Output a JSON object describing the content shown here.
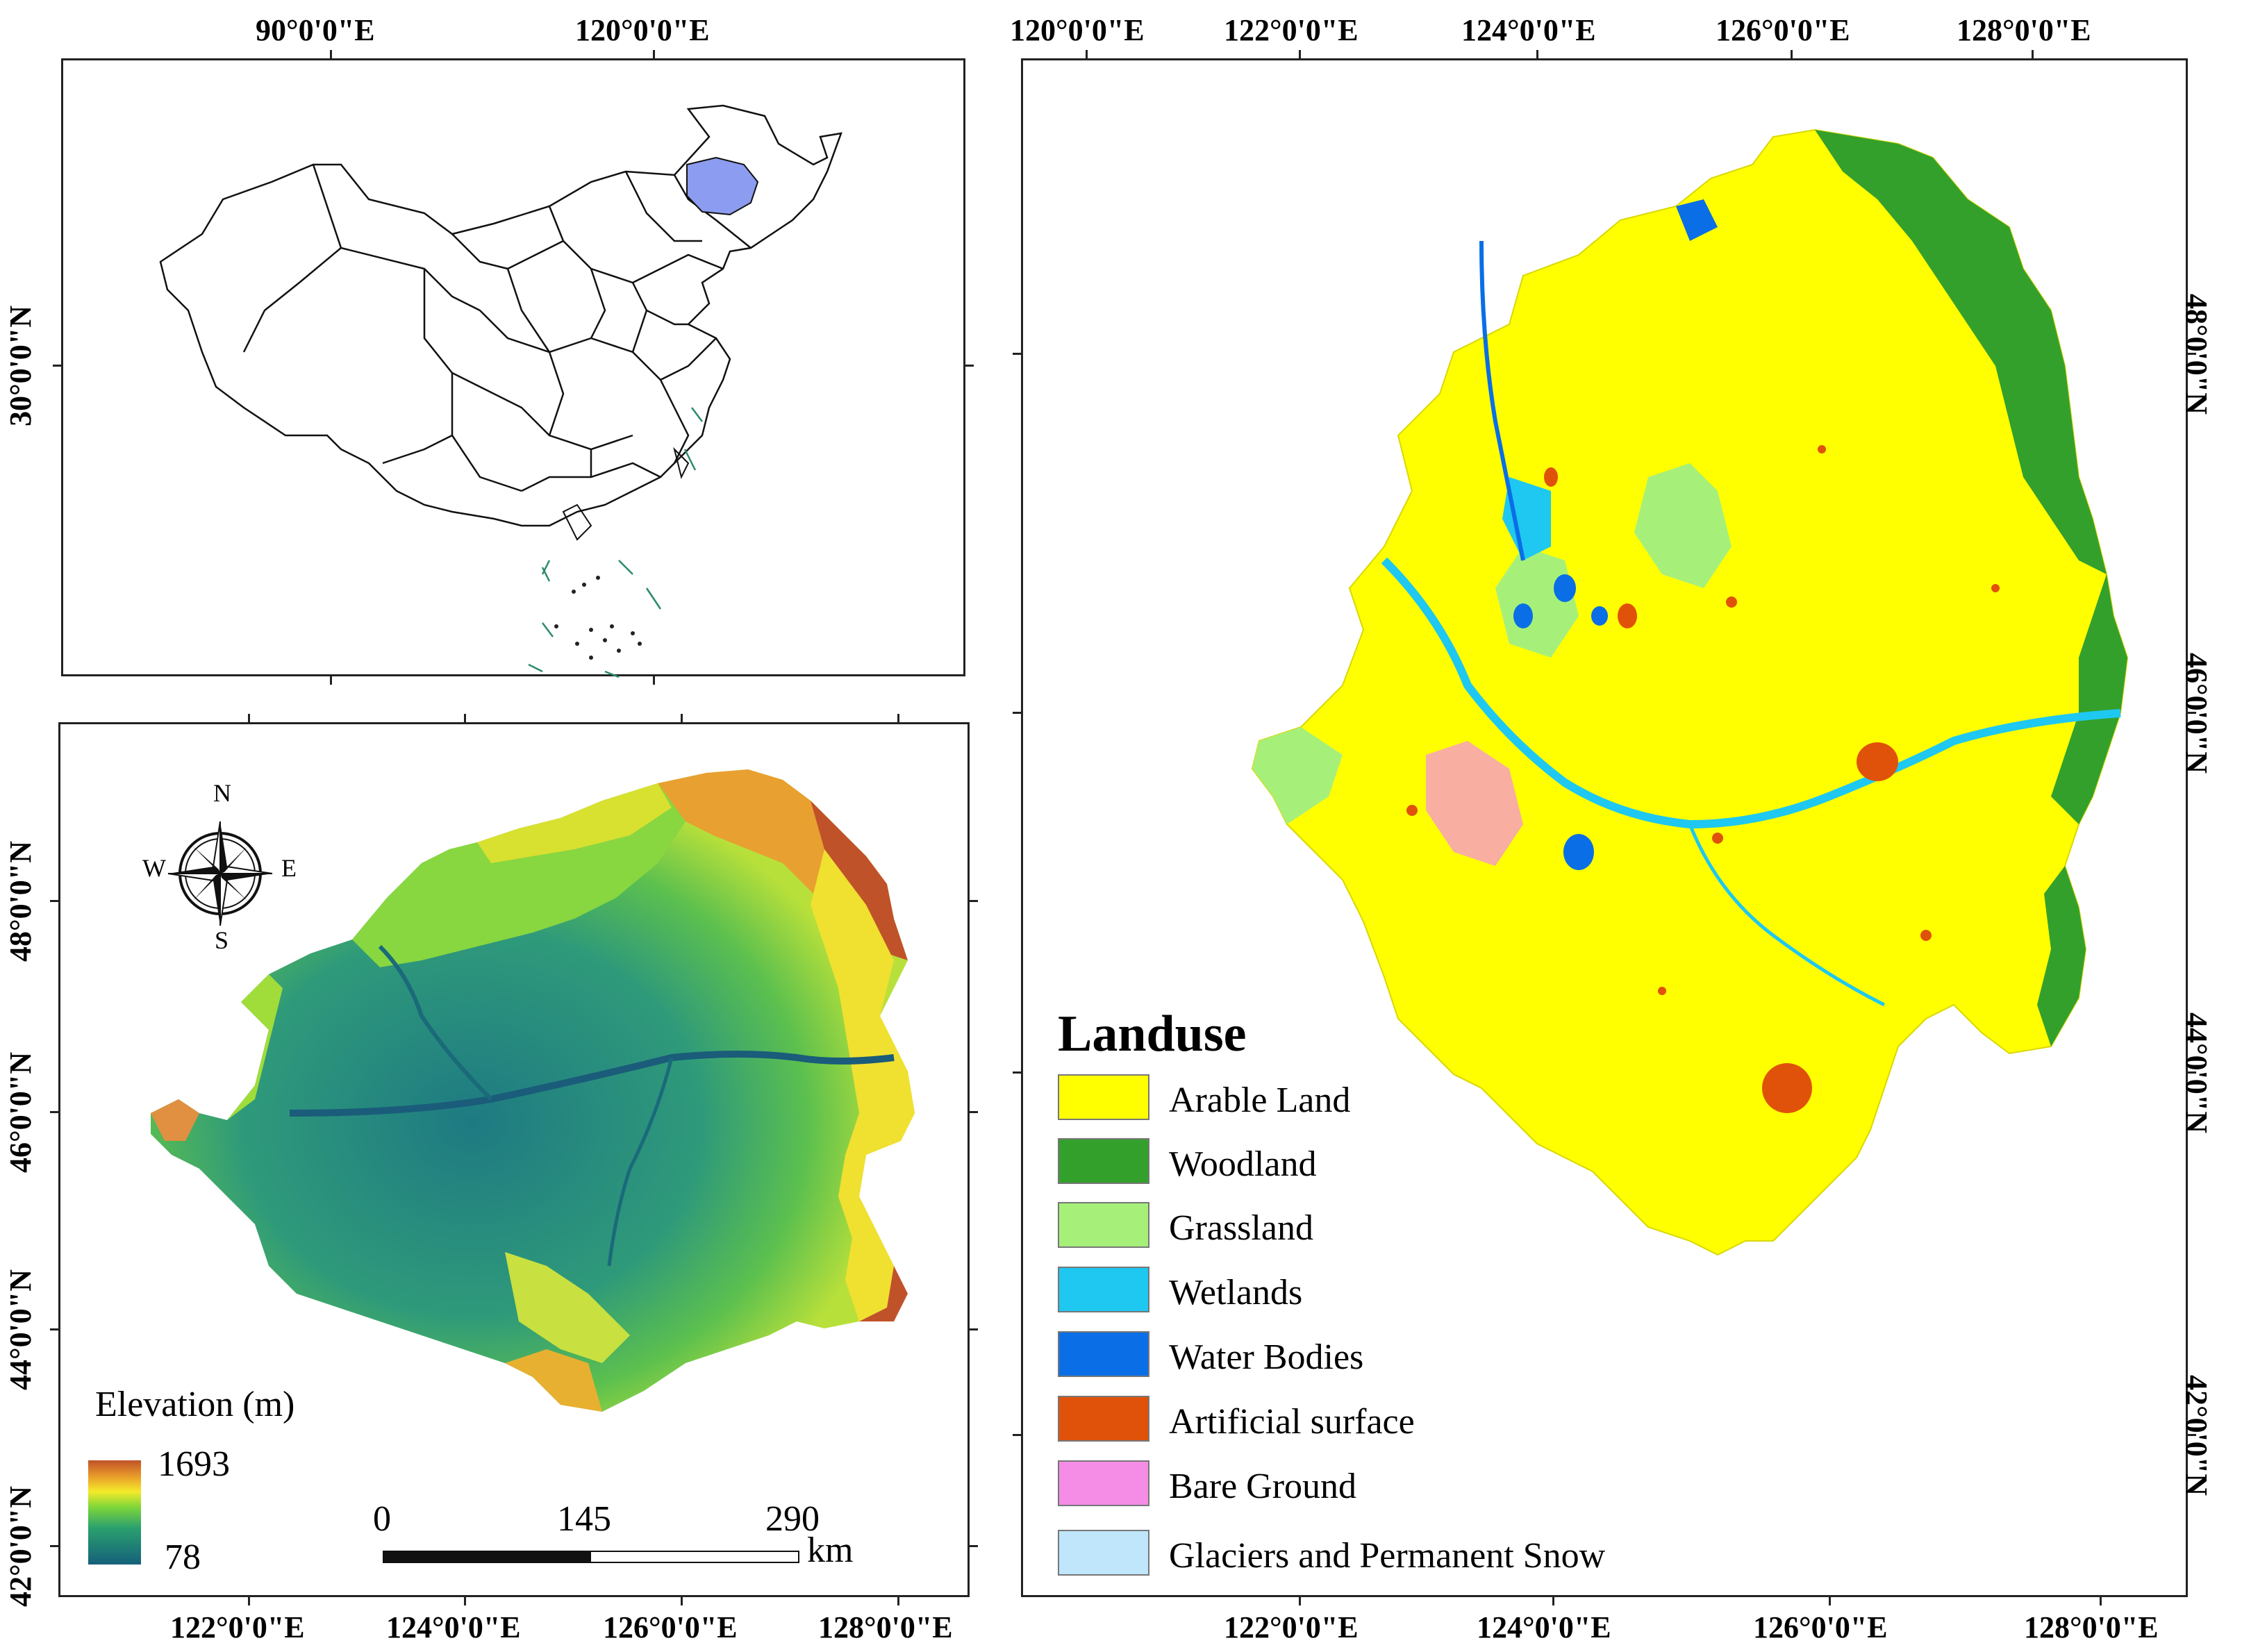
{
  "inset_map": {
    "top_labels": [
      "90°0'0\"E",
      "120°0'0\"E"
    ],
    "left_labels": [
      "30°0'0\"N"
    ],
    "highlight_color": "#8c9cf0"
  },
  "elevation_map": {
    "bottom_labels": [
      "122°0'0\"E",
      "124°0'0\"E",
      "126°0'0\"E",
      "128°0'0\"E"
    ],
    "left_labels": [
      "48°0'0\"N",
      "46°0'0\"N",
      "44°0'0\"N",
      "42°0'0\"N"
    ],
    "compass": {
      "n": "N",
      "s": "S",
      "e": "E",
      "w": "W"
    },
    "legend_title": "Elevation (m)",
    "legend_max": "1693",
    "legend_min": "78",
    "scale_bar": {
      "labels": [
        "0",
        "145",
        "290"
      ],
      "unit": "km"
    }
  },
  "landuse_map": {
    "top_labels": [
      "120°0'0\"E",
      "122°0'0\"E",
      "124°0'0\"E",
      "126°0'0\"E",
      "128°0'0\"E"
    ],
    "bottom_labels": [
      "122°0'0\"E",
      "124°0'0\"E",
      "126°0'0\"E",
      "128°0'0\"E"
    ],
    "right_labels": [
      "48°0'0\"N",
      "46°0'0\"N",
      "44°0'0\"N",
      "42°0'0\"N"
    ],
    "legend_title": "Landuse",
    "legend": [
      {
        "label": "Arable Land",
        "color": "#ffff00"
      },
      {
        "label": "Woodland",
        "color": "#33a02c"
      },
      {
        "label": "Grassland",
        "color": "#a6f07a"
      },
      {
        "label": "Wetlands",
        "color": "#1ec8f0"
      },
      {
        "label": "Water Bodies",
        "color": "#0a6ee6"
      },
      {
        "label": "Artificial surface",
        "color": "#e0520a"
      },
      {
        "label": "Bare Ground",
        "color": "#f58ce6"
      },
      {
        "label": "Glaciers and Permanent Snow",
        "color": "#bfe6fa"
      }
    ]
  }
}
